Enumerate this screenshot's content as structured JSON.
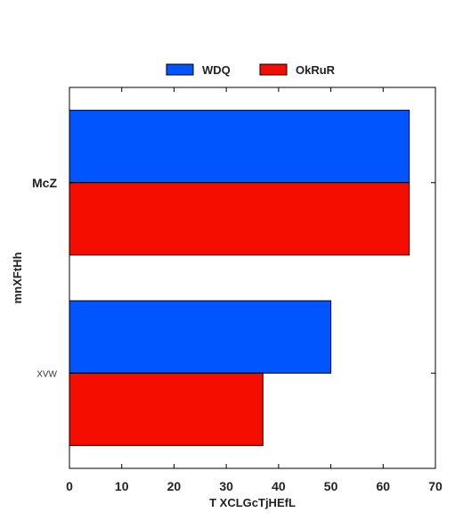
{
  "chart_data": {
    "type": "bar",
    "orientation": "horizontal",
    "title": "",
    "xlabel": "T XCLGcTjHEfL",
    "ylabel": "mnXFtHh",
    "categories": [
      "McZ",
      "XVW"
    ],
    "series": [
      {
        "name": "WDQ",
        "values": [
          65,
          50
        ],
        "color": "#0055ff"
      },
      {
        "name": "OkRuR",
        "values": [
          65,
          37
        ],
        "color": "#f50d00"
      }
    ],
    "xlim": [
      0,
      70
    ],
    "xticks": [
      0,
      10,
      20,
      30,
      40,
      50,
      60,
      70
    ],
    "grid": false,
    "legend_position": "top-center"
  }
}
